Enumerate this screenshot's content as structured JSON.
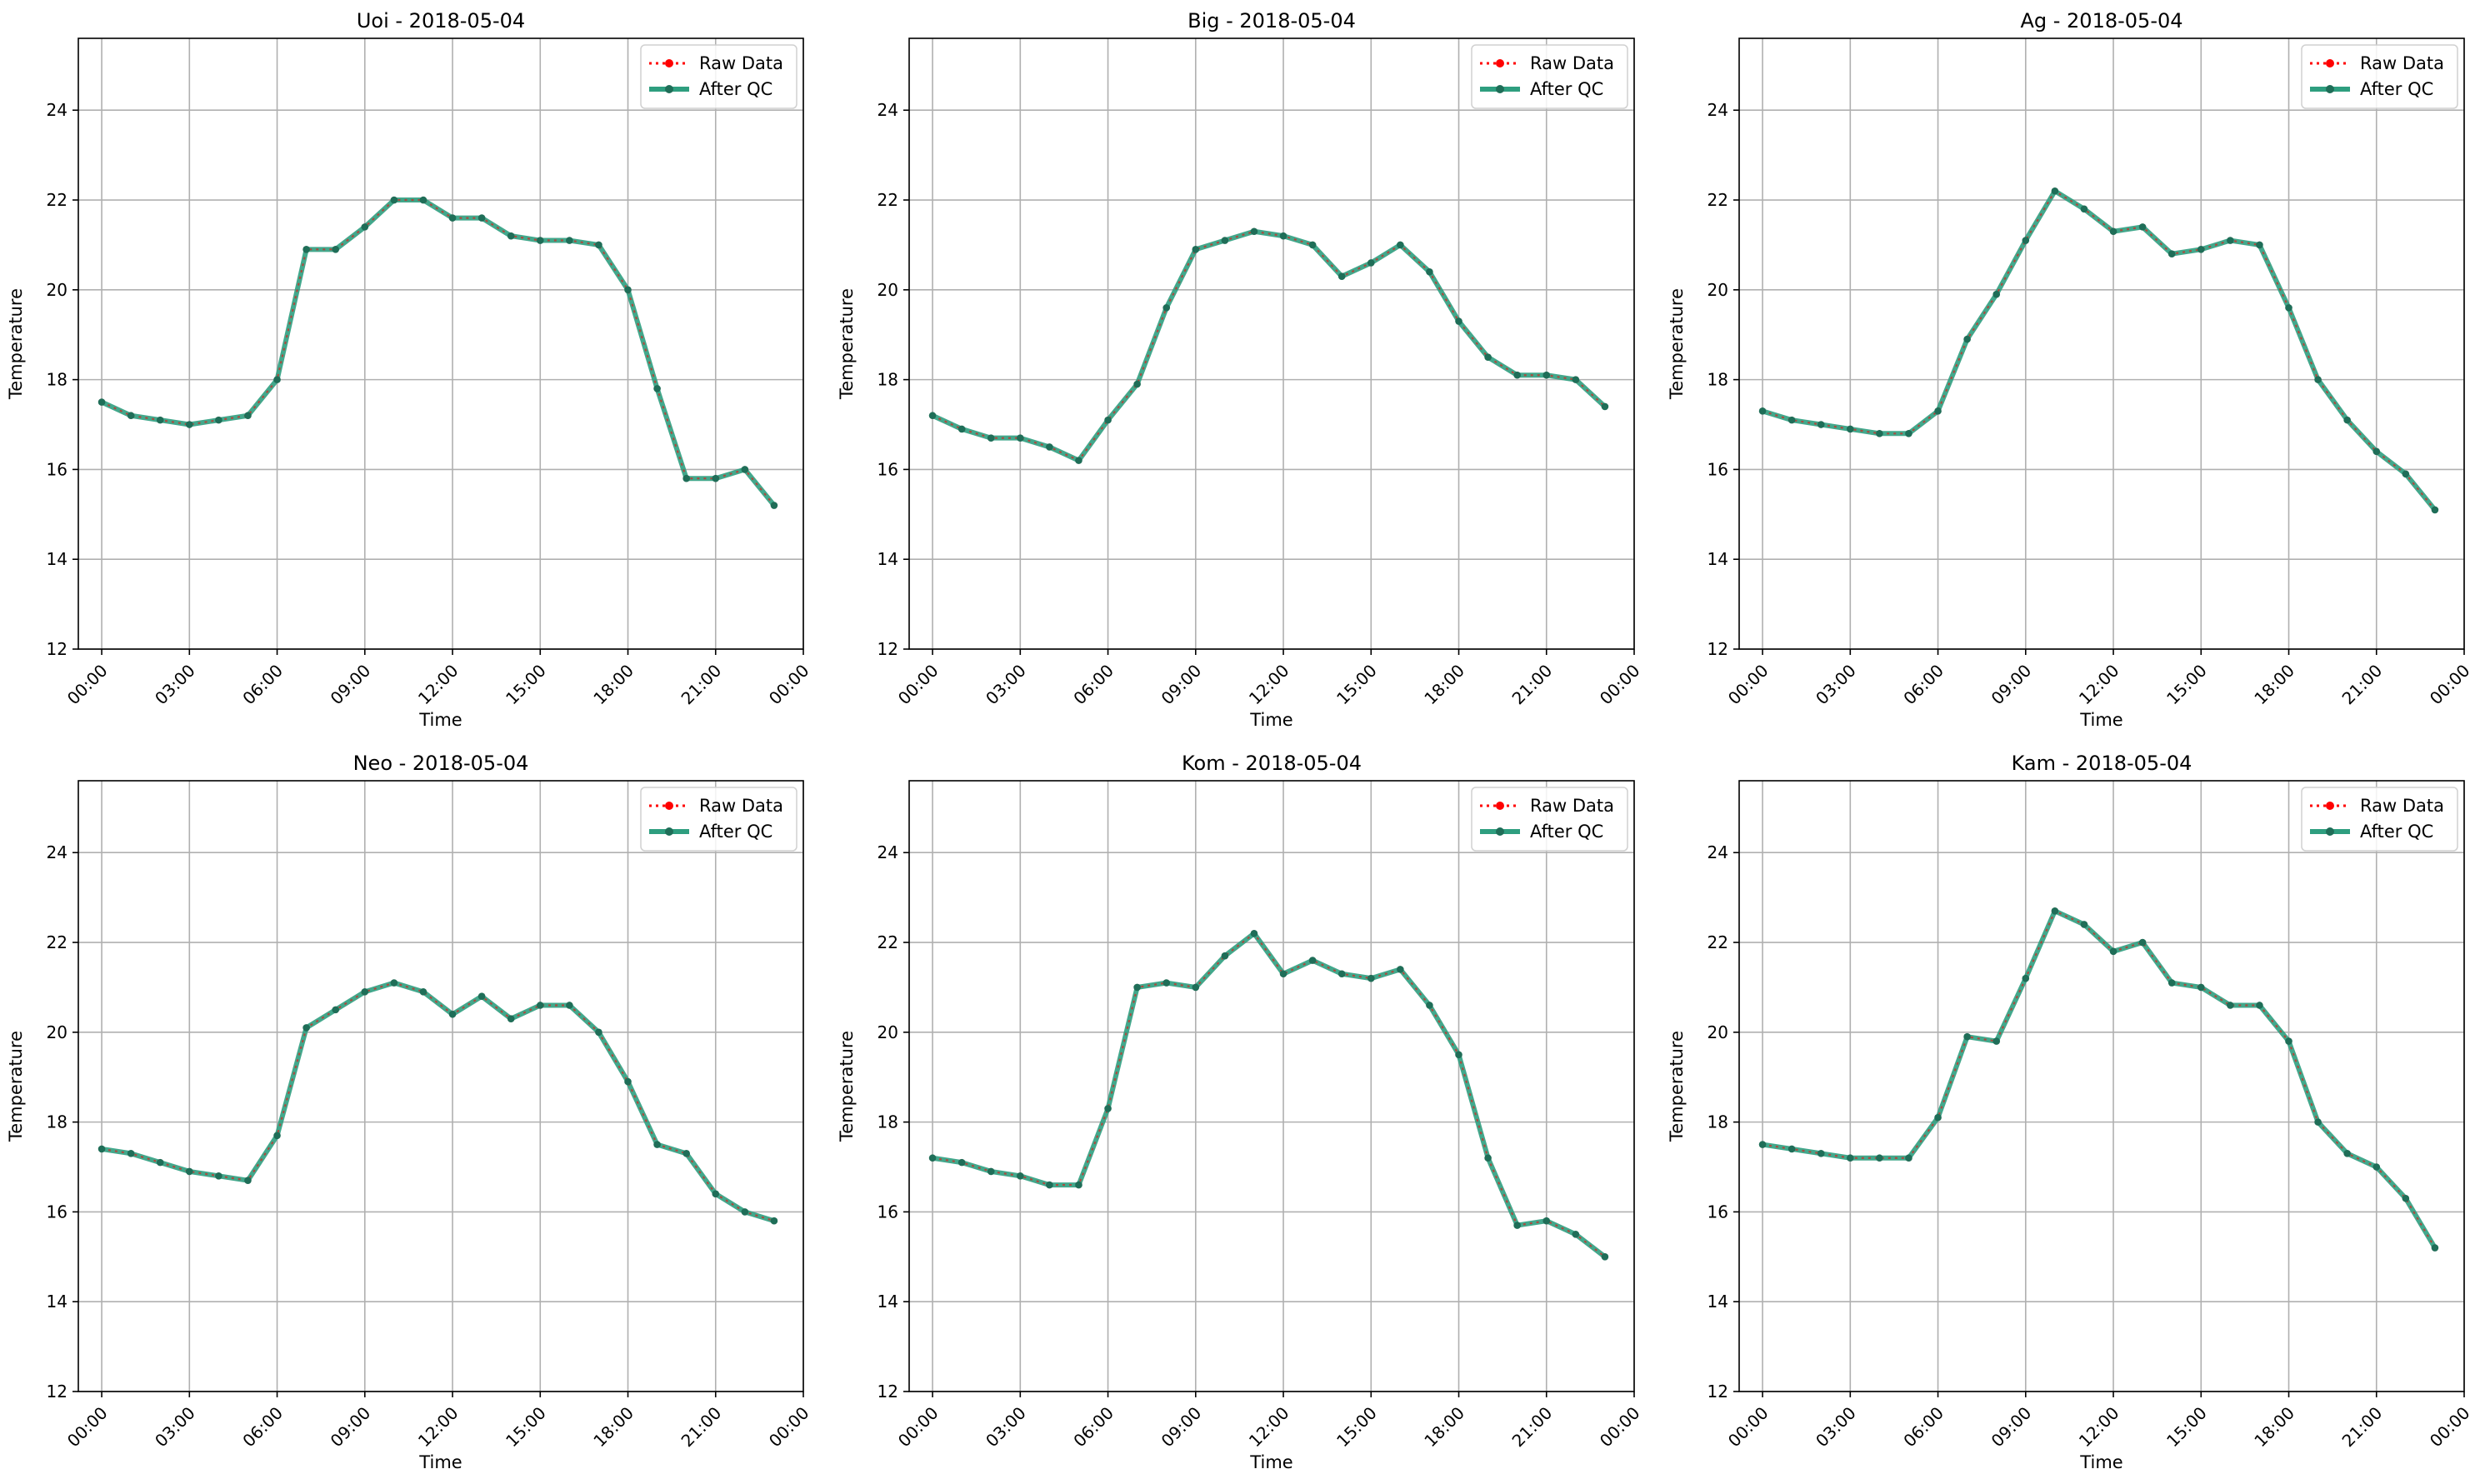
{
  "figure": {
    "series_legend": {
      "raw": "Raw Data",
      "qc": "After QC"
    },
    "colors": {
      "raw": "#ff0000",
      "qc": "#2e9e7f",
      "qc_marker": "#1f6e58",
      "grid": "#b0b0b0"
    }
  },
  "chart_data": [
    {
      "type": "line",
      "title": "Uoi - 2018-05-04",
      "xlabel": "Time",
      "ylabel": "Temperature",
      "x": [
        "00:00",
        "01:00",
        "02:00",
        "03:00",
        "04:00",
        "05:00",
        "06:00",
        "07:00",
        "08:00",
        "09:00",
        "10:00",
        "11:00",
        "12:00",
        "13:00",
        "14:00",
        "15:00",
        "16:00",
        "17:00",
        "18:00",
        "19:00",
        "20:00",
        "21:00",
        "22:00",
        "23:00"
      ],
      "xticks": [
        "00:00",
        "03:00",
        "06:00",
        "09:00",
        "12:00",
        "15:00",
        "18:00",
        "21:00",
        "00:00"
      ],
      "ylim": [
        12,
        25.6
      ],
      "yticks": [
        12,
        14,
        16,
        18,
        20,
        22,
        24
      ],
      "grid": true,
      "legend": "top-right",
      "series": [
        {
          "name": "Raw Data",
          "values": [
            17.5,
            17.2,
            17.1,
            17.0,
            17.1,
            17.2,
            18.0,
            20.9,
            20.9,
            21.4,
            22.0,
            22.0,
            21.6,
            21.6,
            21.2,
            21.1,
            21.1,
            21.0,
            20.0,
            17.8,
            15.8,
            15.8,
            16.0,
            15.2
          ]
        },
        {
          "name": "After QC",
          "values": [
            17.5,
            17.2,
            17.1,
            17.0,
            17.1,
            17.2,
            18.0,
            20.9,
            20.9,
            21.4,
            22.0,
            22.0,
            21.6,
            21.6,
            21.2,
            21.1,
            21.1,
            21.0,
            20.0,
            17.8,
            15.8,
            15.8,
            16.0,
            15.2
          ]
        }
      ]
    },
    {
      "type": "line",
      "title": "Big - 2018-05-04",
      "xlabel": "Time",
      "ylabel": "Temperature",
      "x": [
        "00:00",
        "01:00",
        "02:00",
        "03:00",
        "04:00",
        "05:00",
        "06:00",
        "07:00",
        "08:00",
        "09:00",
        "10:00",
        "11:00",
        "12:00",
        "13:00",
        "14:00",
        "15:00",
        "16:00",
        "17:00",
        "18:00",
        "19:00",
        "20:00",
        "21:00",
        "22:00",
        "23:00"
      ],
      "xticks": [
        "00:00",
        "03:00",
        "06:00",
        "09:00",
        "12:00",
        "15:00",
        "18:00",
        "21:00",
        "00:00"
      ],
      "ylim": [
        12,
        25.6
      ],
      "yticks": [
        12,
        14,
        16,
        18,
        20,
        22,
        24
      ],
      "grid": true,
      "legend": "top-right",
      "series": [
        {
          "name": "Raw Data",
          "values": [
            17.2,
            16.9,
            16.7,
            16.7,
            16.5,
            16.2,
            17.1,
            17.9,
            19.6,
            20.9,
            21.1,
            21.3,
            21.2,
            21.0,
            20.3,
            20.6,
            21.0,
            20.4,
            19.3,
            18.5,
            18.1,
            18.1,
            18.0,
            17.4
          ]
        },
        {
          "name": "After QC",
          "values": [
            17.2,
            16.9,
            16.7,
            16.7,
            16.5,
            16.2,
            17.1,
            17.9,
            19.6,
            20.9,
            21.1,
            21.3,
            21.2,
            21.0,
            20.3,
            20.6,
            21.0,
            20.4,
            19.3,
            18.5,
            18.1,
            18.1,
            18.0,
            17.4
          ]
        }
      ]
    },
    {
      "type": "line",
      "title": "Ag - 2018-05-04",
      "xlabel": "Time",
      "ylabel": "Temperature",
      "x": [
        "00:00",
        "01:00",
        "02:00",
        "03:00",
        "04:00",
        "05:00",
        "06:00",
        "07:00",
        "08:00",
        "09:00",
        "10:00",
        "11:00",
        "12:00",
        "13:00",
        "14:00",
        "15:00",
        "16:00",
        "17:00",
        "18:00",
        "19:00",
        "20:00",
        "21:00",
        "22:00",
        "23:00"
      ],
      "xticks": [
        "00:00",
        "03:00",
        "06:00",
        "09:00",
        "12:00",
        "15:00",
        "18:00",
        "21:00",
        "00:00"
      ],
      "ylim": [
        12,
        25.6
      ],
      "yticks": [
        12,
        14,
        16,
        18,
        20,
        22,
        24
      ],
      "grid": true,
      "legend": "top-right",
      "series": [
        {
          "name": "Raw Data",
          "values": [
            17.3,
            17.1,
            17.0,
            16.9,
            16.8,
            16.8,
            17.3,
            18.9,
            19.9,
            21.1,
            22.2,
            21.8,
            21.3,
            21.4,
            20.8,
            20.9,
            21.1,
            21.0,
            19.6,
            18.0,
            17.1,
            16.4,
            15.9,
            15.1
          ]
        },
        {
          "name": "After QC",
          "values": [
            17.3,
            17.1,
            17.0,
            16.9,
            16.8,
            16.8,
            17.3,
            18.9,
            19.9,
            21.1,
            22.2,
            21.8,
            21.3,
            21.4,
            20.8,
            20.9,
            21.1,
            21.0,
            19.6,
            18.0,
            17.1,
            16.4,
            15.9,
            15.1
          ]
        }
      ]
    },
    {
      "type": "line",
      "title": "Neo - 2018-05-04",
      "xlabel": "Time",
      "ylabel": "Temperature",
      "x": [
        "00:00",
        "01:00",
        "02:00",
        "03:00",
        "04:00",
        "05:00",
        "06:00",
        "07:00",
        "08:00",
        "09:00",
        "10:00",
        "11:00",
        "12:00",
        "13:00",
        "14:00",
        "15:00",
        "16:00",
        "17:00",
        "18:00",
        "19:00",
        "20:00",
        "21:00",
        "22:00",
        "23:00"
      ],
      "xticks": [
        "00:00",
        "03:00",
        "06:00",
        "09:00",
        "12:00",
        "15:00",
        "18:00",
        "21:00",
        "00:00"
      ],
      "ylim": [
        12,
        25.6
      ],
      "yticks": [
        12,
        14,
        16,
        18,
        20,
        22,
        24
      ],
      "grid": true,
      "legend": "top-right",
      "series": [
        {
          "name": "Raw Data",
          "values": [
            17.4,
            17.3,
            17.1,
            16.9,
            16.8,
            16.7,
            17.7,
            20.1,
            20.5,
            20.9,
            21.1,
            20.9,
            20.4,
            20.8,
            20.3,
            20.6,
            20.6,
            20.0,
            18.9,
            17.5,
            17.3,
            16.4,
            16.0,
            15.8
          ]
        },
        {
          "name": "After QC",
          "values": [
            17.4,
            17.3,
            17.1,
            16.9,
            16.8,
            16.7,
            17.7,
            20.1,
            20.5,
            20.9,
            21.1,
            20.9,
            20.4,
            20.8,
            20.3,
            20.6,
            20.6,
            20.0,
            18.9,
            17.5,
            17.3,
            16.4,
            16.0,
            15.8
          ]
        }
      ]
    },
    {
      "type": "line",
      "title": "Kom - 2018-05-04",
      "xlabel": "Time",
      "ylabel": "Temperature",
      "x": [
        "00:00",
        "01:00",
        "02:00",
        "03:00",
        "04:00",
        "05:00",
        "06:00",
        "07:00",
        "08:00",
        "09:00",
        "10:00",
        "11:00",
        "12:00",
        "13:00",
        "14:00",
        "15:00",
        "16:00",
        "17:00",
        "18:00",
        "19:00",
        "20:00",
        "21:00",
        "22:00",
        "23:00"
      ],
      "xticks": [
        "00:00",
        "03:00",
        "06:00",
        "09:00",
        "12:00",
        "15:00",
        "18:00",
        "21:00",
        "00:00"
      ],
      "ylim": [
        12,
        25.6
      ],
      "yticks": [
        12,
        14,
        16,
        18,
        20,
        22,
        24
      ],
      "grid": true,
      "legend": "top-right",
      "series": [
        {
          "name": "Raw Data",
          "values": [
            17.2,
            17.1,
            16.9,
            16.8,
            16.6,
            16.6,
            18.3,
            21.0,
            21.1,
            21.0,
            21.7,
            22.2,
            21.3,
            21.6,
            21.3,
            21.2,
            21.4,
            20.6,
            19.5,
            17.2,
            15.7,
            15.8,
            15.5,
            15.0
          ]
        },
        {
          "name": "After QC",
          "values": [
            17.2,
            17.1,
            16.9,
            16.8,
            16.6,
            16.6,
            18.3,
            21.0,
            21.1,
            21.0,
            21.7,
            22.2,
            21.3,
            21.6,
            21.3,
            21.2,
            21.4,
            20.6,
            19.5,
            17.2,
            15.7,
            15.8,
            15.5,
            15.0
          ]
        }
      ]
    },
    {
      "type": "line",
      "title": "Kam - 2018-05-04",
      "xlabel": "Time",
      "ylabel": "Temperature",
      "x": [
        "00:00",
        "01:00",
        "02:00",
        "03:00",
        "04:00",
        "05:00",
        "06:00",
        "07:00",
        "08:00",
        "09:00",
        "10:00",
        "11:00",
        "12:00",
        "13:00",
        "14:00",
        "15:00",
        "16:00",
        "17:00",
        "18:00",
        "19:00",
        "20:00",
        "21:00",
        "22:00",
        "23:00"
      ],
      "xticks": [
        "00:00",
        "03:00",
        "06:00",
        "09:00",
        "12:00",
        "15:00",
        "18:00",
        "21:00",
        "00:00"
      ],
      "ylim": [
        12,
        25.6
      ],
      "yticks": [
        12,
        14,
        16,
        18,
        20,
        22,
        24
      ],
      "grid": true,
      "legend": "top-right",
      "series": [
        {
          "name": "Raw Data",
          "values": [
            17.5,
            17.4,
            17.3,
            17.2,
            17.2,
            17.2,
            18.1,
            19.9,
            19.8,
            21.2,
            22.7,
            22.4,
            21.8,
            22.0,
            21.1,
            21.0,
            20.6,
            20.6,
            19.8,
            18.0,
            17.3,
            17.0,
            16.3,
            15.2
          ]
        },
        {
          "name": "After QC",
          "values": [
            17.5,
            17.4,
            17.3,
            17.2,
            17.2,
            17.2,
            18.1,
            19.9,
            19.8,
            21.2,
            22.7,
            22.4,
            21.8,
            22.0,
            21.1,
            21.0,
            20.6,
            20.6,
            19.8,
            18.0,
            17.3,
            17.0,
            16.3,
            15.2
          ]
        }
      ]
    }
  ]
}
